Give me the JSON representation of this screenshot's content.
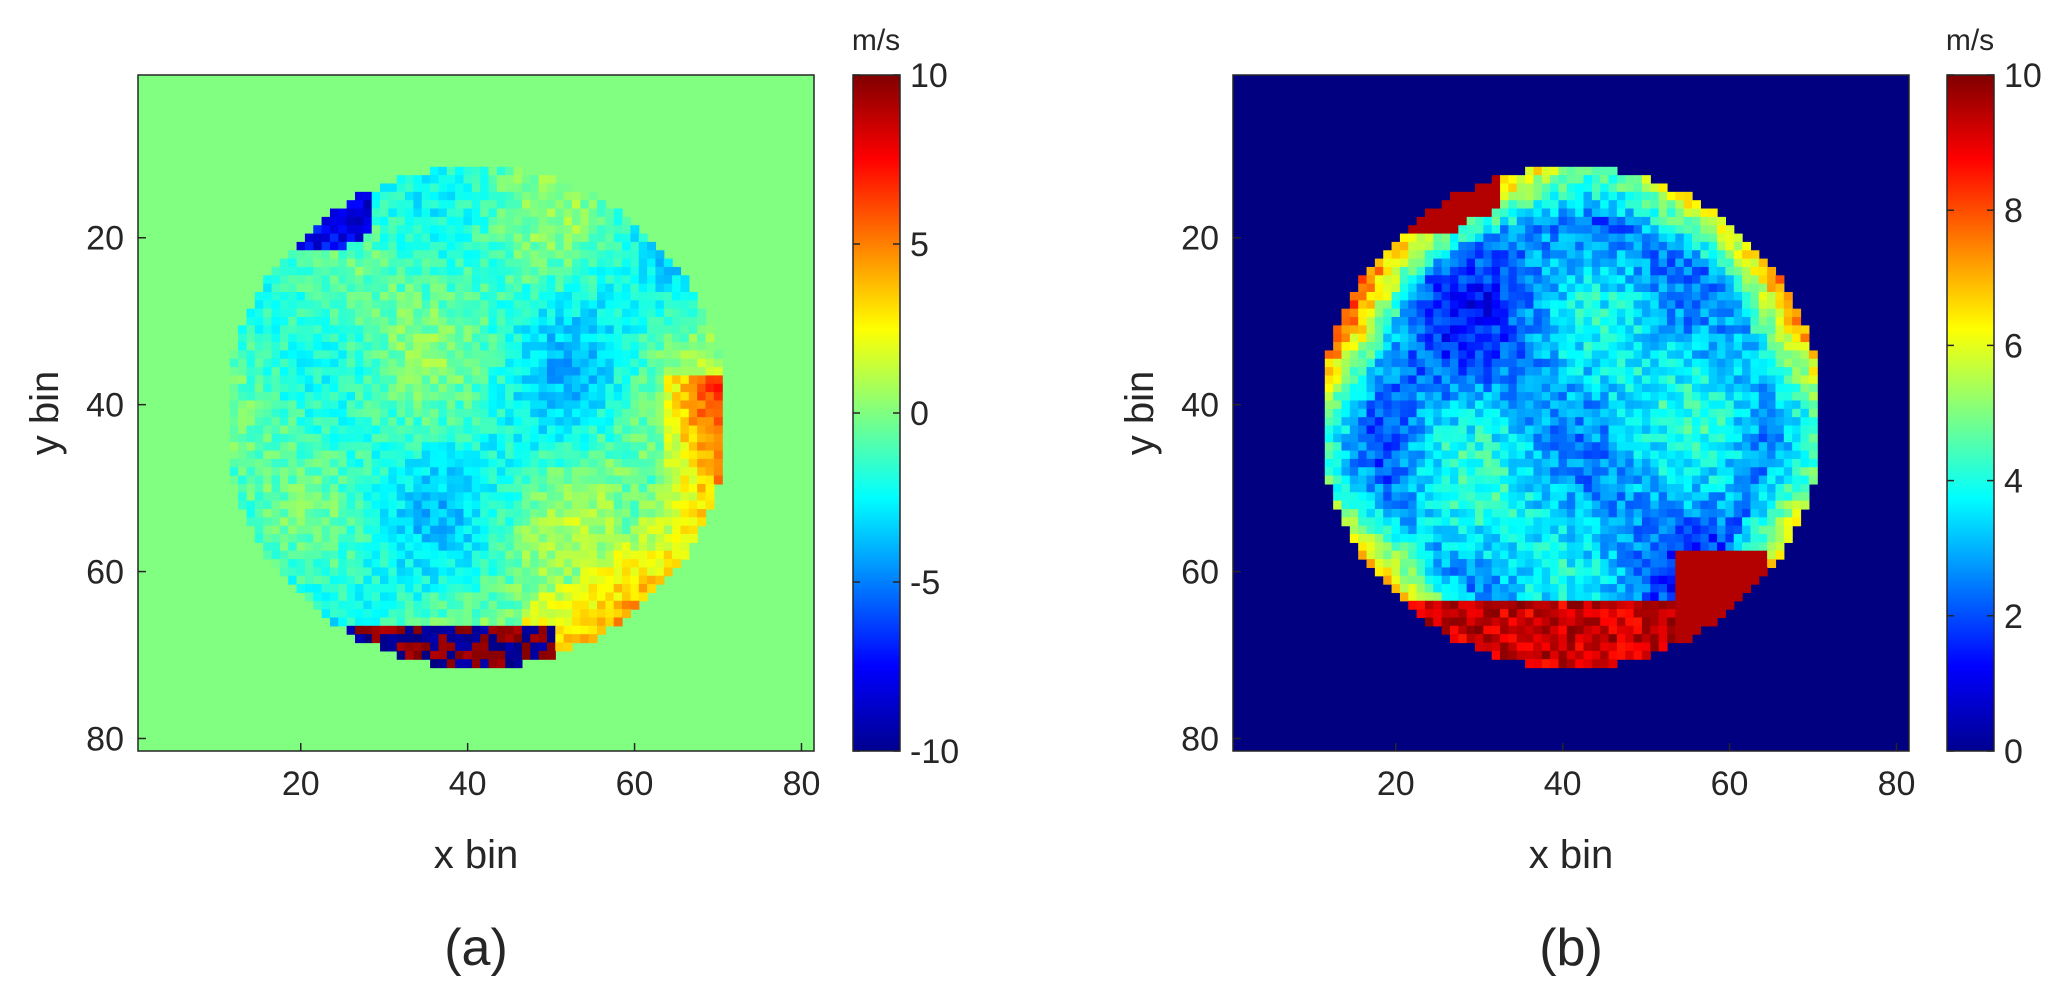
{
  "chart_data": [
    {
      "type": "heatmap",
      "panel_label": "(a)",
      "xlabel": "x bin",
      "ylabel": "y bin",
      "xlim": [
        1,
        81
      ],
      "ylim": [
        1,
        81
      ],
      "y_axis_reversed": true,
      "xticks": [
        20,
        40,
        60,
        80
      ],
      "yticks": [
        20,
        40,
        60,
        80
      ],
      "colorbar": {
        "label": "m/s",
        "colormap": "jet",
        "range": [
          -10,
          10
        ],
        "ticks": [
          10,
          5,
          0,
          -5,
          -10
        ]
      },
      "background_value": 0,
      "circle_region": {
        "center_x": 41,
        "center_y": 41.5,
        "radius": 30
      },
      "field_description_values": {
        "interior_typical": -1.5,
        "rim_bottom_right_warm": 4,
        "bottom_edge_band_min": -10,
        "bottom_edge_band_max": 10
      }
    },
    {
      "type": "heatmap",
      "panel_label": "(b)",
      "xlabel": "x bin",
      "ylabel": "y bin",
      "xlim": [
        1,
        81
      ],
      "ylim": [
        1,
        81
      ],
      "y_axis_reversed": true,
      "xticks": [
        20,
        40,
        60,
        80
      ],
      "yticks": [
        20,
        40,
        60,
        80
      ],
      "colorbar": {
        "label": "m/s",
        "colormap": "jet",
        "range": [
          0,
          10
        ],
        "ticks": [
          10,
          8,
          6,
          4,
          2,
          0
        ]
      },
      "background_value": 0,
      "circle_region": {
        "center_x": 41,
        "center_y": 41.5,
        "radius": 30
      },
      "field_description_values": {
        "interior_typical": 3,
        "rim_typical": 6,
        "bottom_edge_band_max": 10
      }
    }
  ]
}
